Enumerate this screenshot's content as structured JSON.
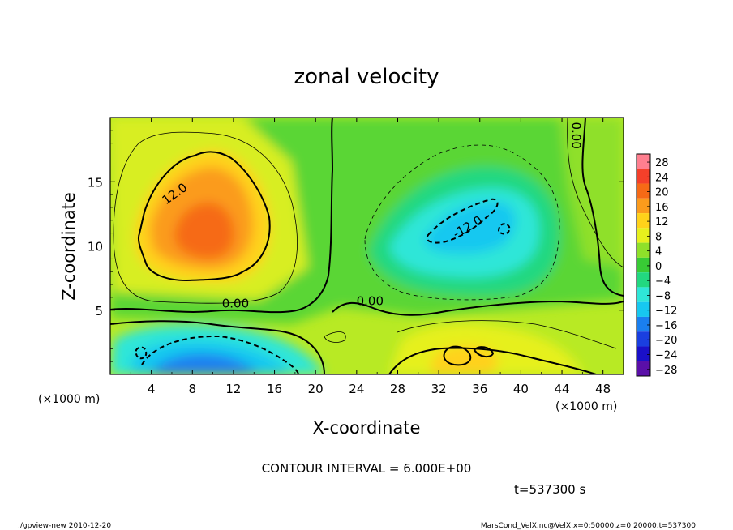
{
  "chart_data": {
    "type": "heatmap",
    "title": "zonal velocity",
    "xlabel": "X-coordinate",
    "ylabel": "Z-coordinate",
    "x_unit_left": "(×1000 m)",
    "x_unit_right": "(×1000 m)",
    "xlim": [
      0,
      50
    ],
    "ylim": [
      0,
      20
    ],
    "x_ticks": [
      4,
      8,
      12,
      16,
      20,
      24,
      28,
      32,
      36,
      40,
      44,
      48
    ],
    "y_ticks": [
      5,
      10,
      15
    ],
    "contour_interval_text": "CONTOUR INTERVAL = 6.000E+00",
    "time_text": "t=537300 s",
    "footer_left": "./gpview-new  2010-12-20",
    "footer_right": "MarsCond_VelX.nc@VelX,x=0:50000,z=0:20000,t=537300",
    "colorbar": {
      "levels": [
        28,
        24,
        20,
        16,
        12,
        8,
        4,
        0,
        -4,
        -8,
        -12,
        -16,
        -20,
        -24,
        -28
      ],
      "colors": [
        "#ff7f8f",
        "#f4402a",
        "#f66a16",
        "#fb9b1c",
        "#ffd21a",
        "#e6f01d",
        "#8fe02a",
        "#38cb35",
        "#22d880",
        "#2fe6d8",
        "#17c8f0",
        "#1a7ff0",
        "#1a3fe0",
        "#1a10c8",
        "#5a0fa8"
      ]
    },
    "contour_labels": [
      {
        "text": "12.0",
        "x": 6.5,
        "y": 13.8
      },
      {
        "text": "0.00",
        "x": 12.2,
        "y": 5.2
      },
      {
        "text": "0.00",
        "x": 25.3,
        "y": 5.4
      },
      {
        "text": "0.00",
        "x": 45.0,
        "y": 18.6
      },
      {
        "text": "-12.0",
        "x": 35.0,
        "y": 11.2
      }
    ]
  }
}
